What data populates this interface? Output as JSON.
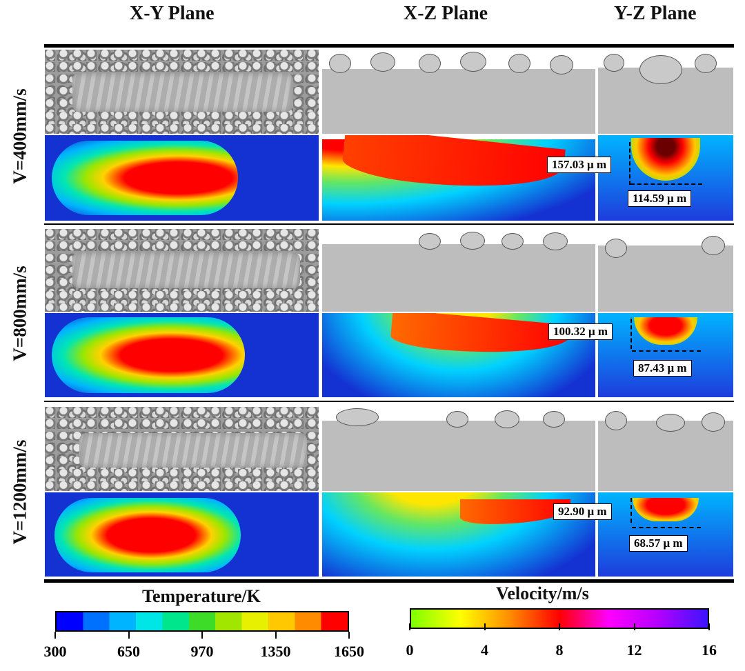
{
  "headers": {
    "xy": "X-Y Plane",
    "xz": "X-Z Plane",
    "yz": "Y-Z Plane"
  },
  "rows": [
    {
      "label": "V=400mm/s",
      "depth": "157.03 μ m",
      "width": "114.59 μ m"
    },
    {
      "label": "V=800mm/s",
      "depth": "100.32 μ m",
      "width": "87.43 μ m"
    },
    {
      "label": "V=1200mm/s",
      "depth": "92.90 μ m",
      "width": "68.57 μ m"
    }
  ],
  "temperature_bar": {
    "title": "Temperature/K",
    "ticks": [
      "300",
      "650",
      "970",
      "1350",
      "1650"
    ],
    "colors": [
      "#0000ff",
      "#0070ff",
      "#00b4ff",
      "#00e6e6",
      "#00e68c",
      "#3cdc28",
      "#a0e600",
      "#e6f000",
      "#ffc800",
      "#ff8c00",
      "#ff0000"
    ]
  },
  "velocity_bar": {
    "title": "Velocity/m/s",
    "ticks": [
      "0",
      "4",
      "8",
      "12",
      "16"
    ],
    "colors": [
      "#7fff00",
      "#ffff00",
      "#ff8c00",
      "#ff0000",
      "#ff00ff",
      "#b400ff",
      "#3c14ff"
    ]
  }
}
